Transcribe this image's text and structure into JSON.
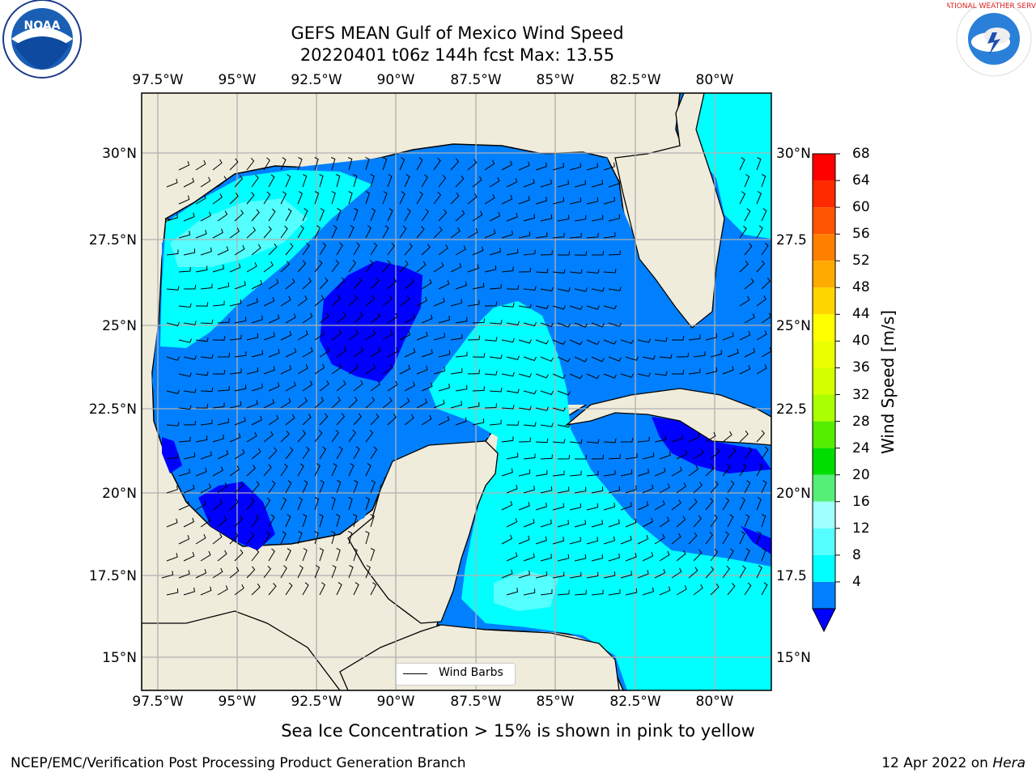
{
  "title_line1": "GEFS MEAN Gulf of Mexico Wind Speed",
  "title_line2": "20220401 t06z 144h fcst   Max: 13.55",
  "x_ticks": [
    "97.5°W",
    "95°W",
    "92.5°W",
    "90°W",
    "87.5°W",
    "85°W",
    "82.5°W",
    "80°W"
  ],
  "y_ticks_left": [
    "30°N",
    "27.5°N",
    "25°N",
    "22.5°N",
    "20°N",
    "17.5°N",
    "15°N"
  ],
  "y_ticks_right": [
    "30°N",
    "27.5",
    "25°N",
    "22.5",
    "20°N",
    "17.5",
    "15°N"
  ],
  "colorbar": {
    "label": "Wind Speed [m/s]",
    "ticks": [
      "68",
      "64",
      "60",
      "56",
      "52",
      "48",
      "44",
      "40",
      "36",
      "32",
      "28",
      "24",
      "20",
      "16",
      "12",
      "8",
      "4"
    ],
    "colors": [
      "#ff0000",
      "#ff2a00",
      "#ff5500",
      "#ff8000",
      "#ffaa00",
      "#ffd500",
      "#ffff00",
      "#eaff00",
      "#d4ff00",
      "#aaff00",
      "#55ee00",
      "#00dd00",
      "#55ee77",
      "#a0ffff",
      "#55ffff",
      "#00ffff",
      "#0080ff"
    ],
    "extend_color": "#0000ff"
  },
  "legend": {
    "label": "Wind Barbs"
  },
  "caption": "Sea Ice Concentration > 15% is shown in pink to yellow",
  "footer_left": "NCEP/EMC/Verification Post Processing Product Generation Branch",
  "footer_right_prefix": "12 Apr 2022 on ",
  "footer_right_host": "Hera",
  "logos": {
    "left": "NOAA",
    "right": "NATIONAL WEATHER SERVICE"
  },
  "colors": {
    "land": "#efecdc",
    "grid": "#b0b0b0"
  }
}
